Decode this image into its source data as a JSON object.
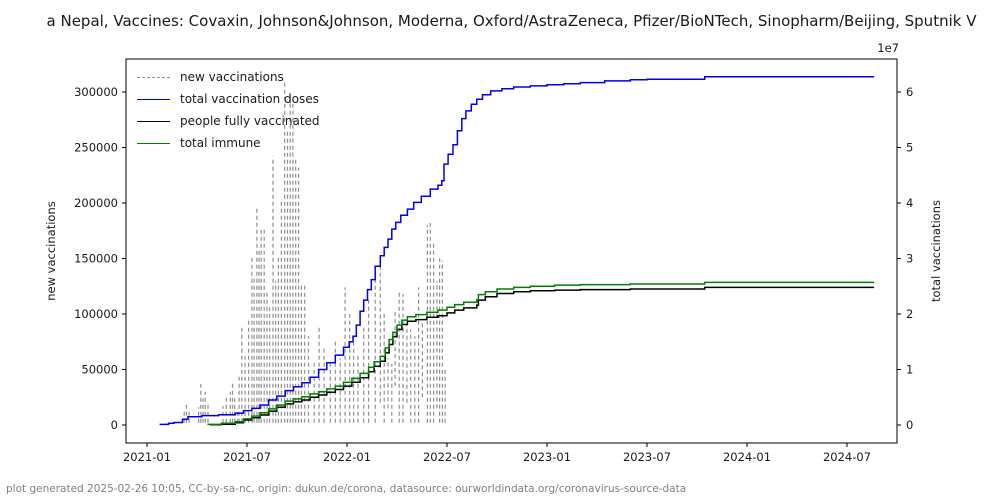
{
  "title_display": "a Nepal, Vaccines: Covaxin, Johnson&Johnson, Moderna, Oxford/AstraZeneca, Pfizer/BioNTech, Sinopharm/Beijing, Sputnik V",
  "footer": "plot generated 2025-02-26 10:05, CC-by-sa-nc, origin: dukun.de/corona, datasource: ourworldindata.org/coronavirus-source-data",
  "legend": {
    "items": [
      {
        "label": "new vaccinations",
        "color": "#909090",
        "style": "dashed"
      },
      {
        "label": "total vaccination doses",
        "color": "#0000ee",
        "style": "solid"
      },
      {
        "label": "people fully vaccinated",
        "color": "#000000",
        "style": "solid"
      },
      {
        "label": "total immune",
        "color": "#008000",
        "style": "solid"
      }
    ]
  },
  "chart_data": {
    "type": "line",
    "title": "Nepal, Vaccines: Covaxin, Johnson&Johnson, Moderna, Oxford/AstraZeneca, Pfizer/BioNTech, Sinopharm/Beijing, Sputnik V",
    "x_axis": {
      "tick_labels": [
        "2021-01",
        "2021-07",
        "2022-01",
        "2022-07",
        "2023-01",
        "2023-07",
        "2024-01",
        "2024-07"
      ]
    },
    "y_left": {
      "label": "new vaccinations",
      "ticks": [
        0,
        50000,
        100000,
        150000,
        200000,
        250000,
        300000
      ],
      "range": [
        -15000,
        330000
      ]
    },
    "y_right": {
      "label": "total vaccinations",
      "offset_label": "1e7",
      "ticks": [
        0,
        1,
        2,
        3,
        4,
        5,
        6
      ],
      "range": [
        0,
        66000000
      ]
    },
    "grid": false,
    "legend_position": "upper left",
    "series": [
      {
        "name": "new vaccinations",
        "axis": "left",
        "color": "#909090",
        "style": "dashed-spikes",
        "points": [
          [
            "2021-03-08",
            14000
          ],
          [
            "2021-03-12",
            20000
          ],
          [
            "2021-03-17",
            12000
          ],
          [
            "2021-04-04",
            16000
          ],
          [
            "2021-04-08",
            37000
          ],
          [
            "2021-04-12",
            24000
          ],
          [
            "2021-04-16",
            30000
          ],
          [
            "2021-04-21",
            21000
          ],
          [
            "2021-05-18",
            17000
          ],
          [
            "2021-05-24",
            25000
          ],
          [
            "2021-06-01",
            30000
          ],
          [
            "2021-06-05",
            40000
          ],
          [
            "2021-06-09",
            24000
          ],
          [
            "2021-06-14",
            15000
          ],
          [
            "2021-06-17",
            45000
          ],
          [
            "2021-06-22",
            88000
          ],
          [
            "2021-06-28",
            62000
          ],
          [
            "2021-07-04",
            95000
          ],
          [
            "2021-07-10",
            152000
          ],
          [
            "2021-07-14",
            133000
          ],
          [
            "2021-07-19",
            196000
          ],
          [
            "2021-07-23",
            160000
          ],
          [
            "2021-07-27",
            176000
          ],
          [
            "2021-08-02",
            178000
          ],
          [
            "2021-08-07",
            120000
          ],
          [
            "2021-08-12",
            106000
          ],
          [
            "2021-08-18",
            242000
          ],
          [
            "2021-08-23",
            130000
          ],
          [
            "2021-08-28",
            152000
          ],
          [
            "2021-09-03",
            202000
          ],
          [
            "2021-09-09",
            310000
          ],
          [
            "2021-09-14",
            265000
          ],
          [
            "2021-09-19",
            299000
          ],
          [
            "2021-09-24",
            292000
          ],
          [
            "2021-09-29",
            240000
          ],
          [
            "2021-10-04",
            232000
          ],
          [
            "2021-10-09",
            128000
          ],
          [
            "2021-10-15",
            126000
          ],
          [
            "2021-10-22",
            80000
          ],
          [
            "2021-11-02",
            58000
          ],
          [
            "2021-11-11",
            90000
          ],
          [
            "2021-11-20",
            70000
          ],
          [
            "2021-12-01",
            55000
          ],
          [
            "2021-12-10",
            75000
          ],
          [
            "2021-12-19",
            60000
          ],
          [
            "2021-12-28",
            124000
          ],
          [
            "2022-01-06",
            100000
          ],
          [
            "2022-01-13",
            79000
          ],
          [
            "2022-01-21",
            65000
          ],
          [
            "2022-02-01",
            88000
          ],
          [
            "2022-02-10",
            115000
          ],
          [
            "2022-02-22",
            141000
          ],
          [
            "2022-03-01",
            148000,
            20000
          ],
          [
            "2022-03-08",
            103000
          ],
          [
            "2022-03-15",
            60000,
            15000
          ],
          [
            "2022-03-22",
            55000
          ],
          [
            "2022-03-28",
            103000,
            35000
          ],
          [
            "2022-04-05",
            121000
          ],
          [
            "2022-04-12",
            118000
          ],
          [
            "2022-04-19",
            91000,
            20000
          ],
          [
            "2022-04-26",
            86000
          ],
          [
            "2022-05-03",
            80000
          ],
          [
            "2022-05-10",
            124000
          ],
          [
            "2022-05-17",
            95000,
            25000
          ],
          [
            "2022-05-26",
            180000
          ],
          [
            "2022-06-01",
            182000
          ],
          [
            "2022-06-07",
            166000
          ],
          [
            "2022-06-13",
            130000,
            15000
          ],
          [
            "2022-06-18",
            150000
          ],
          [
            "2022-06-23",
            148000
          ],
          [
            "2022-06-28",
            52000
          ]
        ]
      },
      {
        "name": "total vaccination doses",
        "axis": "right",
        "color": "#0000ee",
        "style": "solid-steps",
        "points": [
          [
            "2021-01-24",
            100000
          ],
          [
            "2021-02-10",
            300000
          ],
          [
            "2021-02-20",
            450000
          ],
          [
            "2021-03-05",
            1050000
          ],
          [
            "2021-03-15",
            1500000
          ],
          [
            "2021-04-10",
            1700000
          ],
          [
            "2021-05-10",
            1850000
          ],
          [
            "2021-06-10",
            2100000
          ],
          [
            "2021-06-25",
            2600000
          ],
          [
            "2021-07-10",
            3000000
          ],
          [
            "2021-07-25",
            3600000
          ],
          [
            "2021-08-10",
            4500000
          ],
          [
            "2021-08-25",
            5200000
          ],
          [
            "2021-09-10",
            6200000
          ],
          [
            "2021-09-25",
            6900000
          ],
          [
            "2021-10-10",
            7600000
          ],
          [
            "2021-10-25",
            8600000
          ],
          [
            "2021-11-10",
            10000000
          ],
          [
            "2021-11-25",
            11200000
          ],
          [
            "2021-12-10",
            12600000
          ],
          [
            "2021-12-25",
            14000000
          ],
          [
            "2022-01-05",
            15000000
          ],
          [
            "2022-01-12",
            16000000
          ],
          [
            "2022-01-18",
            18000000
          ],
          [
            "2022-01-25",
            20500000
          ],
          [
            "2022-02-01",
            22500000
          ],
          [
            "2022-02-08",
            24400000
          ],
          [
            "2022-02-15",
            26200000
          ],
          [
            "2022-02-22",
            28600000
          ],
          [
            "2022-03-01",
            30500000
          ],
          [
            "2022-03-08",
            32000000
          ],
          [
            "2022-03-15",
            33500000
          ],
          [
            "2022-03-22",
            35300000
          ],
          [
            "2022-03-29",
            36500000
          ],
          [
            "2022-04-08",
            37800000
          ],
          [
            "2022-04-20",
            38900000
          ],
          [
            "2022-05-01",
            40100000
          ],
          [
            "2022-05-15",
            41200000
          ],
          [
            "2022-06-01",
            42500000
          ],
          [
            "2022-06-15",
            43200000
          ],
          [
            "2022-06-22",
            44000000
          ],
          [
            "2022-06-26",
            47000000
          ],
          [
            "2022-07-03",
            48800000
          ],
          [
            "2022-07-12",
            50500000
          ],
          [
            "2022-07-20",
            53000000
          ],
          [
            "2022-07-28",
            55200000
          ],
          [
            "2022-08-05",
            56600000
          ],
          [
            "2022-08-15",
            57800000
          ],
          [
            "2022-08-25",
            58700000
          ],
          [
            "2022-09-05",
            59500000
          ],
          [
            "2022-09-20",
            60200000
          ],
          [
            "2022-10-10",
            60600000
          ],
          [
            "2022-11-01",
            60900000
          ],
          [
            "2022-12-01",
            61100000
          ],
          [
            "2023-01-01",
            61300000
          ],
          [
            "2023-02-01",
            61500000
          ],
          [
            "2023-03-01",
            61700000
          ],
          [
            "2023-04-15",
            62000000
          ],
          [
            "2023-06-01",
            62200000
          ],
          [
            "2023-07-01",
            62300000
          ],
          [
            "2023-10-15",
            62750000
          ],
          [
            "2024-08-20",
            62750000
          ]
        ]
      },
      {
        "name": "people fully vaccinated",
        "axis": "right",
        "color": "#000000",
        "style": "solid-steps",
        "points": [
          [
            "2021-04-25",
            50000
          ],
          [
            "2021-05-15",
            150000
          ],
          [
            "2021-06-10",
            400000
          ],
          [
            "2021-06-25",
            900000
          ],
          [
            "2021-07-10",
            1300000
          ],
          [
            "2021-07-25",
            1800000
          ],
          [
            "2021-08-10",
            2500000
          ],
          [
            "2021-08-25",
            3200000
          ],
          [
            "2021-09-10",
            3800000
          ],
          [
            "2021-09-25",
            4200000
          ],
          [
            "2021-10-10",
            4500000
          ],
          [
            "2021-10-25",
            5000000
          ],
          [
            "2021-11-10",
            5400000
          ],
          [
            "2021-11-25",
            5900000
          ],
          [
            "2021-12-10",
            6400000
          ],
          [
            "2021-12-25",
            7000000
          ],
          [
            "2022-01-10",
            7700000
          ],
          [
            "2022-01-25",
            8500000
          ],
          [
            "2022-02-10",
            9600000
          ],
          [
            "2022-02-20",
            10600000
          ],
          [
            "2022-03-01",
            11500000
          ],
          [
            "2022-03-10",
            13000000
          ],
          [
            "2022-03-17",
            14500000
          ],
          [
            "2022-03-24",
            15900000
          ],
          [
            "2022-04-01",
            17200000
          ],
          [
            "2022-04-10",
            18100000
          ],
          [
            "2022-04-20",
            18700000
          ],
          [
            "2022-05-05",
            19000000
          ],
          [
            "2022-05-25",
            19400000
          ],
          [
            "2022-06-15",
            19700000
          ],
          [
            "2022-07-01",
            20200000
          ],
          [
            "2022-07-15",
            20700000
          ],
          [
            "2022-08-01",
            21100000
          ],
          [
            "2022-08-25",
            21600000
          ],
          [
            "2022-08-28",
            22500000
          ],
          [
            "2022-09-10",
            23100000
          ],
          [
            "2022-10-01",
            23700000
          ],
          [
            "2022-11-01",
            24000000
          ],
          [
            "2022-12-01",
            24200000
          ],
          [
            "2023-01-15",
            24300000
          ],
          [
            "2023-03-01",
            24400000
          ],
          [
            "2023-06-01",
            24500000
          ],
          [
            "2023-10-15",
            24800000
          ],
          [
            "2024-08-20",
            24800000
          ]
        ]
      },
      {
        "name": "total immune",
        "axis": "right",
        "color": "#008000",
        "style": "solid-steps",
        "points": [
          [
            "2021-04-20",
            100000
          ],
          [
            "2021-05-15",
            300000
          ],
          [
            "2021-06-10",
            600000
          ],
          [
            "2021-06-25",
            1100000
          ],
          [
            "2021-07-10",
            1600000
          ],
          [
            "2021-07-25",
            2200000
          ],
          [
            "2021-08-10",
            2900000
          ],
          [
            "2021-08-25",
            3600000
          ],
          [
            "2021-09-10",
            4300000
          ],
          [
            "2021-09-25",
            4700000
          ],
          [
            "2021-10-10",
            5100000
          ],
          [
            "2021-10-25",
            5600000
          ],
          [
            "2021-11-10",
            6000000
          ],
          [
            "2021-11-25",
            6500000
          ],
          [
            "2021-12-10",
            7000000
          ],
          [
            "2021-12-25",
            7700000
          ],
          [
            "2022-01-10",
            8400000
          ],
          [
            "2022-01-25",
            9300000
          ],
          [
            "2022-02-10",
            10400000
          ],
          [
            "2022-02-20",
            11400000
          ],
          [
            "2022-03-01",
            12400000
          ],
          [
            "2022-03-10",
            13900000
          ],
          [
            "2022-03-17",
            15400000
          ],
          [
            "2022-03-24",
            16700000
          ],
          [
            "2022-04-01",
            18000000
          ],
          [
            "2022-04-10",
            18900000
          ],
          [
            "2022-04-20",
            19500000
          ],
          [
            "2022-05-05",
            19900000
          ],
          [
            "2022-05-25",
            20300000
          ],
          [
            "2022-06-15",
            20700000
          ],
          [
            "2022-07-01",
            21200000
          ],
          [
            "2022-07-15",
            21700000
          ],
          [
            "2022-08-01",
            22100000
          ],
          [
            "2022-08-25",
            22600000
          ],
          [
            "2022-08-28",
            23500000
          ],
          [
            "2022-09-10",
            24000000
          ],
          [
            "2022-10-01",
            24500000
          ],
          [
            "2022-11-01",
            24800000
          ],
          [
            "2022-12-01",
            25000000
          ],
          [
            "2023-01-15",
            25200000
          ],
          [
            "2023-03-01",
            25300000
          ],
          [
            "2023-06-01",
            25400000
          ],
          [
            "2023-10-15",
            25700000
          ],
          [
            "2024-08-20",
            25700000
          ]
        ]
      }
    ]
  }
}
